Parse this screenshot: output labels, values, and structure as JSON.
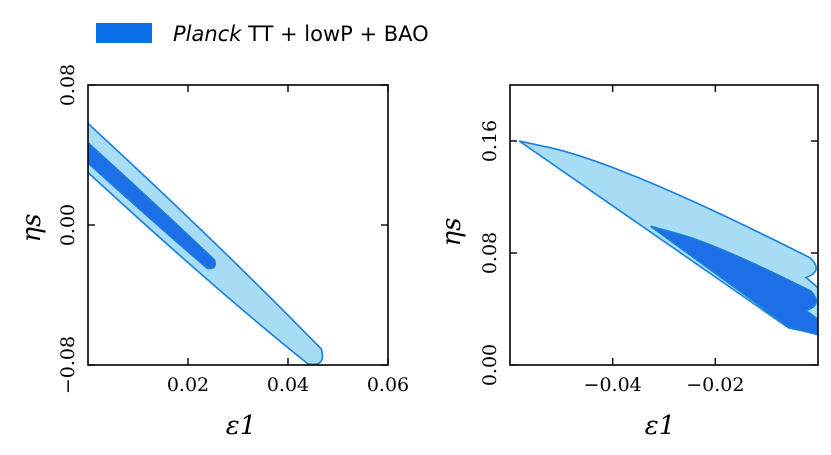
{
  "legend": {
    "italic_part": "Planck",
    "rest_part": " TT + lowP + BAO",
    "swatch_color": "#0a6fe8"
  },
  "colors": {
    "inner": "#1c6fe6",
    "outer": "#a8dcf4",
    "edge": "#1a7fd8"
  },
  "chart_data": [
    {
      "type": "contour",
      "xlabel": "ε1",
      "ylabel": "ηs",
      "xlim": [
        0.0,
        0.06
      ],
      "ylim": [
        -0.08,
        0.08
      ],
      "xticks": [
        0.02,
        0.04,
        0.06
      ],
      "xtick_labels": [
        "0.02",
        "0.04",
        "0.06"
      ],
      "yticks": [
        -0.08,
        0.0,
        0.08
      ],
      "ytick_labels": [
        "−0.08",
        "0.00",
        "0.08"
      ],
      "outer_contour": [
        [
          0.0,
          0.058
        ],
        [
          0.0468,
          -0.079
        ],
        [
          0.0,
          0.03
        ]
      ],
      "inner_contour": [
        [
          0.0,
          0.047
        ],
        [
          0.0254,
          -0.0245
        ],
        [
          0.0,
          0.0355
        ]
      ]
    },
    {
      "type": "contour",
      "xlabel": "ε1",
      "ylabel": "ηs",
      "xlim": [
        -0.06,
        0.0
      ],
      "ylim": [
        0.0,
        0.2
      ],
      "xticks": [
        -0.04,
        -0.02
      ],
      "xtick_labels": [
        "−0.04",
        "−0.02"
      ],
      "yticks": [
        0.0,
        0.08,
        0.16
      ],
      "ytick_labels": [
        "0.00",
        "0.08",
        "0.16"
      ],
      "outer_contour": [
        [
          -0.0525,
          0.1555
        ],
        [
          0.0,
          0.068
        ],
        [
          0.0,
          0.022
        ]
      ],
      "inner_contour": [
        [
          -0.027,
          0.0935
        ],
        [
          0.0,
          0.044
        ],
        [
          0.0,
          0.0215
        ]
      ]
    }
  ]
}
